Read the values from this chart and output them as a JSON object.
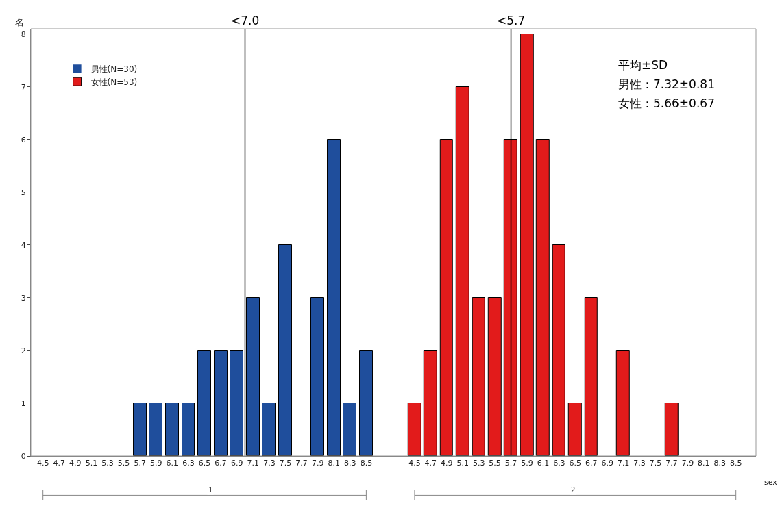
{
  "chart_data": [
    {
      "type": "bar",
      "x": [
        4.5,
        4.7,
        4.9,
        5.1,
        5.3,
        5.5,
        5.7,
        5.9,
        6.1,
        6.3,
        6.5,
        6.7,
        6.9,
        7.1,
        7.3,
        7.5,
        7.7,
        7.9,
        8.1,
        8.3,
        8.5
      ],
      "series": [
        {
          "name": "男性(N=30)",
          "color": "#1f4e9c",
          "values": [
            0,
            0,
            0,
            0,
            0,
            0,
            1,
            1,
            1,
            1,
            2,
            2,
            2,
            3,
            1,
            4,
            0,
            3,
            6,
            1,
            2
          ]
        }
      ],
      "xlim": [
        4.35,
        8.8
      ],
      "xticks": [
        4.5,
        4.7,
        4.9,
        5.1,
        5.3,
        5.5,
        5.7,
        5.9,
        6.1,
        6.3,
        6.5,
        6.7,
        6.9,
        7.1,
        7.3,
        7.5,
        7.7,
        7.9,
        8.1,
        8.3,
        8.5
      ],
      "ylim": [
        0,
        8.1
      ],
      "yticks": [
        0,
        1,
        2,
        3,
        4,
        5,
        6,
        7,
        8
      ],
      "xlabel": "1",
      "ylabel": "名",
      "legend": "top left",
      "ref_lines": [
        {
          "axis": "x",
          "value": 7.0,
          "label": "<7.0",
          "color": "#000000"
        }
      ]
    },
    {
      "type": "bar",
      "x": [
        4.5,
        4.7,
        4.9,
        5.1,
        5.3,
        5.5,
        5.7,
        5.9,
        6.1,
        6.3,
        6.5,
        6.7,
        6.9,
        7.1,
        7.3,
        7.5,
        7.7,
        7.9,
        8.1,
        8.3,
        8.5
      ],
      "series": [
        {
          "name": "女性(N=53)",
          "color": "#e21b1b",
          "values": [
            1,
            2,
            6,
            7,
            3,
            3,
            6,
            8,
            6,
            4,
            1,
            3,
            0,
            2,
            0,
            0,
            1,
            0,
            0,
            0,
            0
          ]
        }
      ],
      "xlim": [
        4.2,
        8.75
      ],
      "xticks": [
        4.5,
        4.7,
        4.9,
        5.1,
        5.3,
        5.5,
        5.7,
        5.9,
        6.1,
        6.3,
        6.5,
        6.7,
        6.9,
        7.1,
        7.3,
        7.5,
        7.7,
        7.9,
        8.1,
        8.3,
        8.5
      ],
      "ylim": [
        0,
        8.1
      ],
      "yticks": [
        0,
        1,
        2,
        3,
        4,
        5,
        6,
        7,
        8
      ],
      "xlabel": "2",
      "tick_labels": "x",
      "legend": "top left",
      "ref_lines": [
        {
          "axis": "x",
          "value": 5.7,
          "label": "<5.7",
          "color": "#000000"
        }
      ],
      "annotations": [
        "平均±SD",
        "男性：7.32±0.81",
        "女性：5.66±0.67",
        "sex"
      ]
    }
  ]
}
